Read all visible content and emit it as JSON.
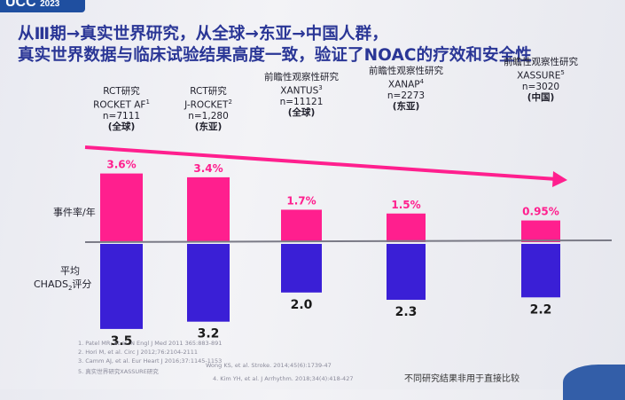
{
  "header": {
    "logo_text": "UCC",
    "logo_year": "2023"
  },
  "title": {
    "line1": "从Ⅲ期→真实世界研究，从全球→东亚→中国人群，",
    "line2": "真实世界数据与临床试验结果高度一致，验证了NOAC的疗效和安全性"
  },
  "studies": [
    {
      "type": "RCT研究",
      "name": "ROCKET AF",
      "sup": "1",
      "n": "n=7111",
      "region": "(全球)"
    },
    {
      "type": "RCT研究",
      "name": "J-ROCKET",
      "sup": "2",
      "n": "n=1,280",
      "region": "(东亚)"
    },
    {
      "type": "前瞻性观察性研究",
      "name": "XANTUS",
      "sup": "3",
      "n": "n=11121",
      "region": "(全球)"
    },
    {
      "type": "前瞻性观察性研究",
      "name": "XANAP",
      "sup": "4",
      "n": "n=2273",
      "region": "(东亚)"
    },
    {
      "type": "前瞻性观察性研究",
      "name": "XASSURE",
      "sup": "5",
      "n": "n=3020",
      "region": "(中国)"
    }
  ],
  "axis_labels": {
    "event_rate": "事件率/年",
    "chads_line1": "平均",
    "chads_line2": "CHADS",
    "chads_sub": "2",
    "chads_suffix": "评分"
  },
  "colors": {
    "event_bar": "#ff1f8e",
    "chads_bar": "#3a1fd6",
    "arrow": "#ff1f8e",
    "baseline": "#7a7a86",
    "event_label": "#ff1f8e"
  },
  "chart_data": {
    "type": "bar",
    "categories": [
      "ROCKET AF",
      "J-ROCKET",
      "XANTUS",
      "XANAP",
      "XASSURE"
    ],
    "series": [
      {
        "name": "事件率/年",
        "values": [
          3.6,
          3.4,
          1.7,
          1.5,
          0.95
        ],
        "labels": [
          "3.6%",
          "3.4%",
          "1.7%",
          "1.5%",
          "0.95%"
        ]
      },
      {
        "name": "平均CHADS2评分",
        "values": [
          3.5,
          3.2,
          2.0,
          2.3,
          2.2
        ],
        "labels": [
          "3.5",
          "3.2",
          "2.0",
          "2.3",
          "2.2"
        ]
      }
    ]
  },
  "footnotes": [
    "1. Patel MR, et al. N Engl J Med 2011 365:883-891",
    "2. Hori M, et al. Circ J 2012;76:2104-2111",
    "3. Camm AJ, et al. Eur Heart J 2016;37:1145-1153",
    "4. Kim YH, et al. J Arrhythm. 2018;34(4):418-427",
    "5. 真实世界研究XASSURE研究",
    "Wong KS, et al. Stroke. 2014;45(6):1739-47"
  ],
  "notice": "不同研究结果非用于直接比较"
}
